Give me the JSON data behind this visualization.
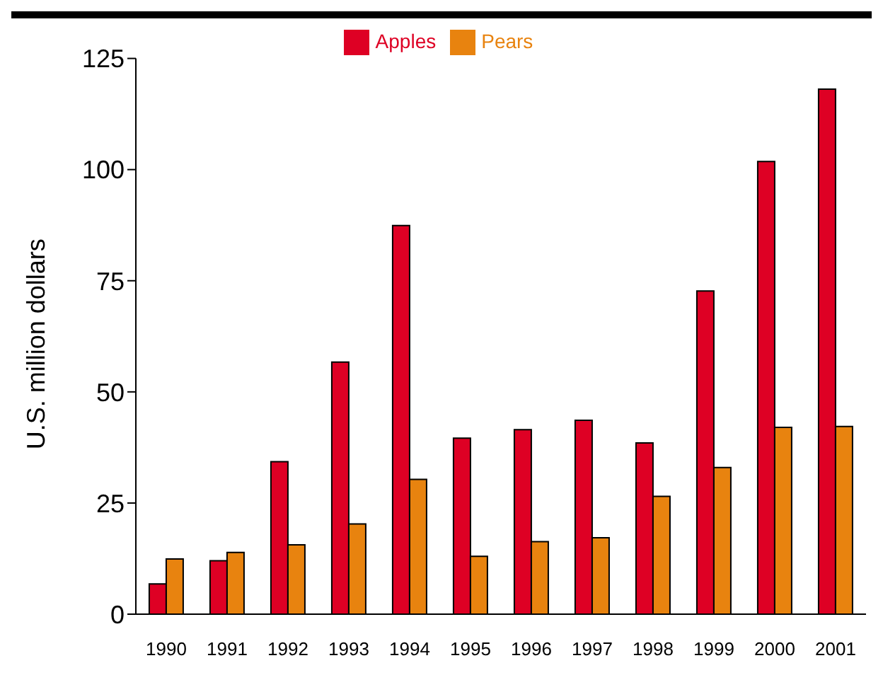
{
  "chart_data": {
    "type": "bar",
    "ylabel": "U.S. million dollars",
    "categories": [
      "1990",
      "1991",
      "1992",
      "1993",
      "1994",
      "1995",
      "1996",
      "1997",
      "1998",
      "1999",
      "2000",
      "2001"
    ],
    "series": [
      {
        "name": "Apples",
        "color": "#de0024",
        "values": [
          6.8,
          12,
          34.3,
          56.7,
          87.4,
          39.6,
          41.5,
          43.6,
          38.5,
          72.7,
          101.8,
          118.1
        ]
      },
      {
        "name": "Pears",
        "color": "#e8830f",
        "values": [
          12.4,
          13.9,
          15.6,
          20.3,
          30.3,
          13,
          16.3,
          17.2,
          26.5,
          33,
          42,
          42.2
        ]
      }
    ],
    "ylim": [
      0,
      125
    ],
    "yticks": [
      0,
      25,
      50,
      75,
      100,
      125
    ],
    "grid": false,
    "legend": "top"
  }
}
